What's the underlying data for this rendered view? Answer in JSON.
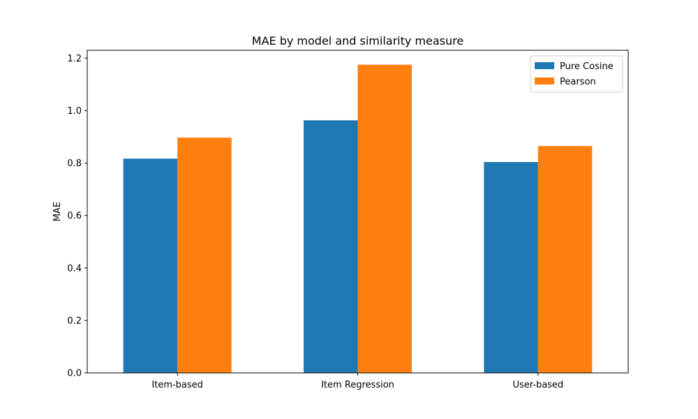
{
  "chart_data": {
    "type": "bar",
    "title": "MAE by model and similarity measure",
    "xlabel": "",
    "ylabel": "MAE",
    "categories": [
      "Item-based",
      "Item Regression",
      "User-based"
    ],
    "series": [
      {
        "name": "Pure Cosine",
        "color": "#1f77b4",
        "values": [
          0.817,
          0.963,
          0.804
        ]
      },
      {
        "name": "Pearson",
        "color": "#ff7f0e",
        "values": [
          0.897,
          1.175,
          0.865
        ]
      }
    ],
    "ylim": [
      0,
      1.23
    ],
    "yticks": [
      0.0,
      0.2,
      0.4,
      0.6,
      0.8,
      1.0,
      1.2
    ],
    "ytick_labels": [
      "0.0",
      "0.2",
      "0.4",
      "0.6",
      "0.8",
      "1.0",
      "1.2"
    ],
    "grid": false,
    "legend_position": "top-right"
  }
}
